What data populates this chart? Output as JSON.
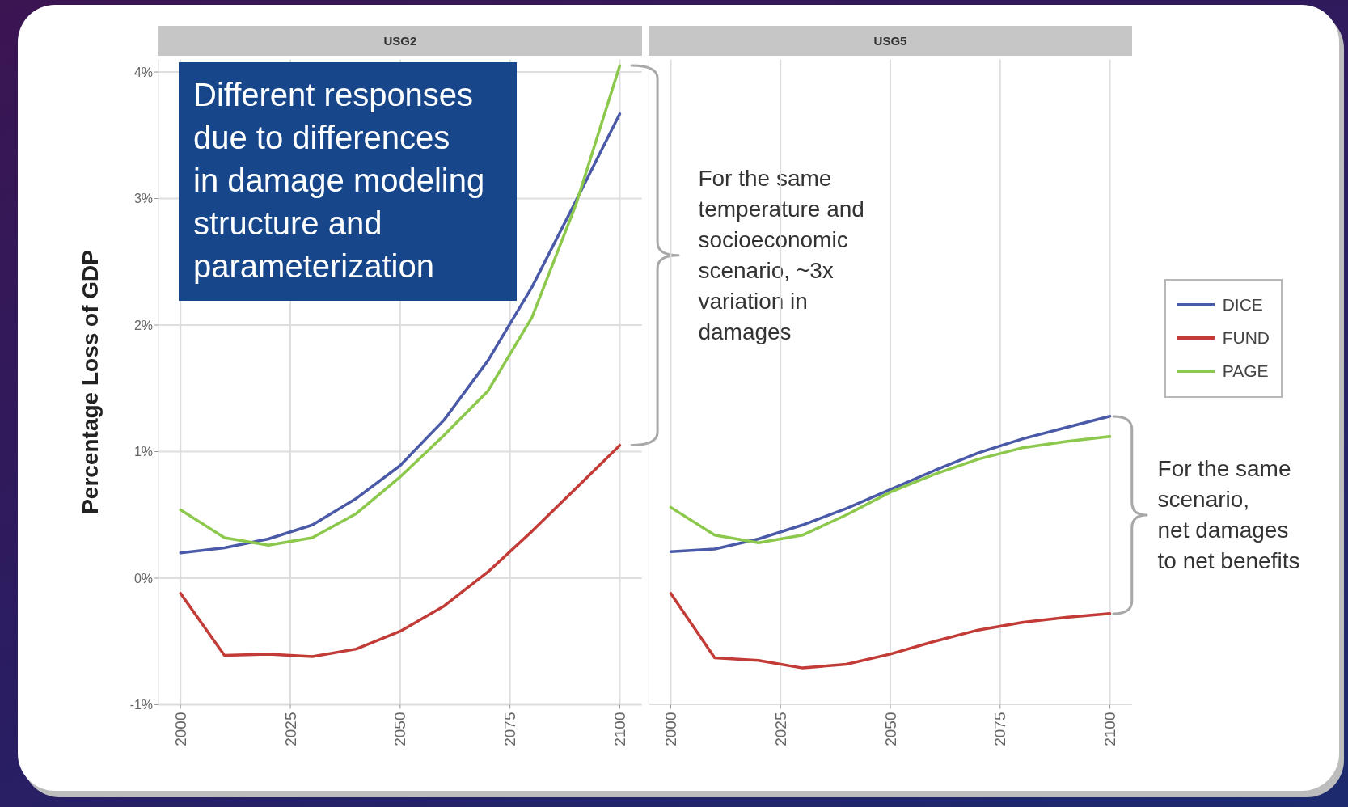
{
  "chart_data": [
    {
      "type": "line",
      "title": "USG2",
      "ylabel": "Percentage Loss of GDP",
      "x": [
        2000,
        2010,
        2020,
        2030,
        2040,
        2050,
        2060,
        2070,
        2080,
        2090,
        2100
      ],
      "series": [
        {
          "color": "#4a5aa8",
          "values": [
            0.2,
            0.24,
            0.31,
            0.42,
            0.63,
            0.89,
            1.25,
            1.72,
            2.3,
            2.98,
            3.67
          ]
        },
        {
          "color": "#c23b37",
          "values": [
            -0.12,
            -0.61,
            -0.6,
            -0.62,
            -0.56,
            -0.42,
            -0.22,
            0.05,
            0.37,
            0.71,
            1.05
          ]
        },
        {
          "color": "#8cc84b",
          "values": [
            0.54,
            0.32,
            0.26,
            0.32,
            0.51,
            0.8,
            1.13,
            1.48,
            2.06,
            2.95,
            4.05
          ]
        }
      ],
      "xlim": [
        1995,
        2105
      ],
      "xticks": [
        2000,
        2025,
        2050,
        2075,
        2100
      ],
      "ylim": [
        -1,
        4.1
      ],
      "yticks": [
        {
          "value": -1,
          "label": "-1%"
        },
        {
          "value": 0,
          "label": "0%"
        },
        {
          "value": 1,
          "label": "1%"
        },
        {
          "value": 2,
          "label": "2%"
        },
        {
          "value": 3,
          "label": "3%"
        },
        {
          "value": 4,
          "label": "4%"
        }
      ],
      "grid": true,
      "annotations": [
        "Different responses\ndue to differences\nin damage modeling\nstructure and\nparameterization",
        "For the same\ntemperature and\nsocioeconomic\nscenario, ~3x\nvariation in\ndamages"
      ]
    },
    {
      "type": "line",
      "title": "USG5",
      "x": [
        2000,
        2010,
        2020,
        2030,
        2040,
        2050,
        2060,
        2070,
        2080,
        2090,
        2100
      ],
      "series": [
        {
          "name": "DICE",
          "color": "#4a5aa8",
          "values": [
            0.21,
            0.23,
            0.31,
            0.42,
            0.55,
            0.7,
            0.85,
            0.99,
            1.1,
            1.19,
            1.28
          ]
        },
        {
          "name": "FUND",
          "color": "#c23b37",
          "values": [
            -0.12,
            -0.63,
            -0.65,
            -0.71,
            -0.68,
            -0.6,
            -0.5,
            -0.41,
            -0.35,
            -0.31,
            -0.28
          ]
        },
        {
          "name": "PAGE",
          "color": "#8cc84b",
          "values": [
            0.56,
            0.34,
            0.28,
            0.34,
            0.5,
            0.68,
            0.82,
            0.94,
            1.03,
            1.08,
            1.12
          ]
        }
      ],
      "xlim": [
        1995,
        2105
      ],
      "xticks": [
        2000,
        2025,
        2050,
        2075,
        2100
      ],
      "ylim": [
        -1,
        4.1
      ],
      "yticks": [
        {
          "value": -1,
          "label": null
        },
        {
          "value": 0,
          "label": null
        },
        {
          "value": 1,
          "label": null
        },
        {
          "value": 2,
          "label": null
        },
        {
          "value": 3,
          "label": null
        },
        {
          "value": 4,
          "label": null
        }
      ],
      "grid": true,
      "tick_labels": "x",
      "legend": "right",
      "annotations": [
        "For the same\nscenario,\nnet damages\nto net benefits"
      ]
    }
  ]
}
